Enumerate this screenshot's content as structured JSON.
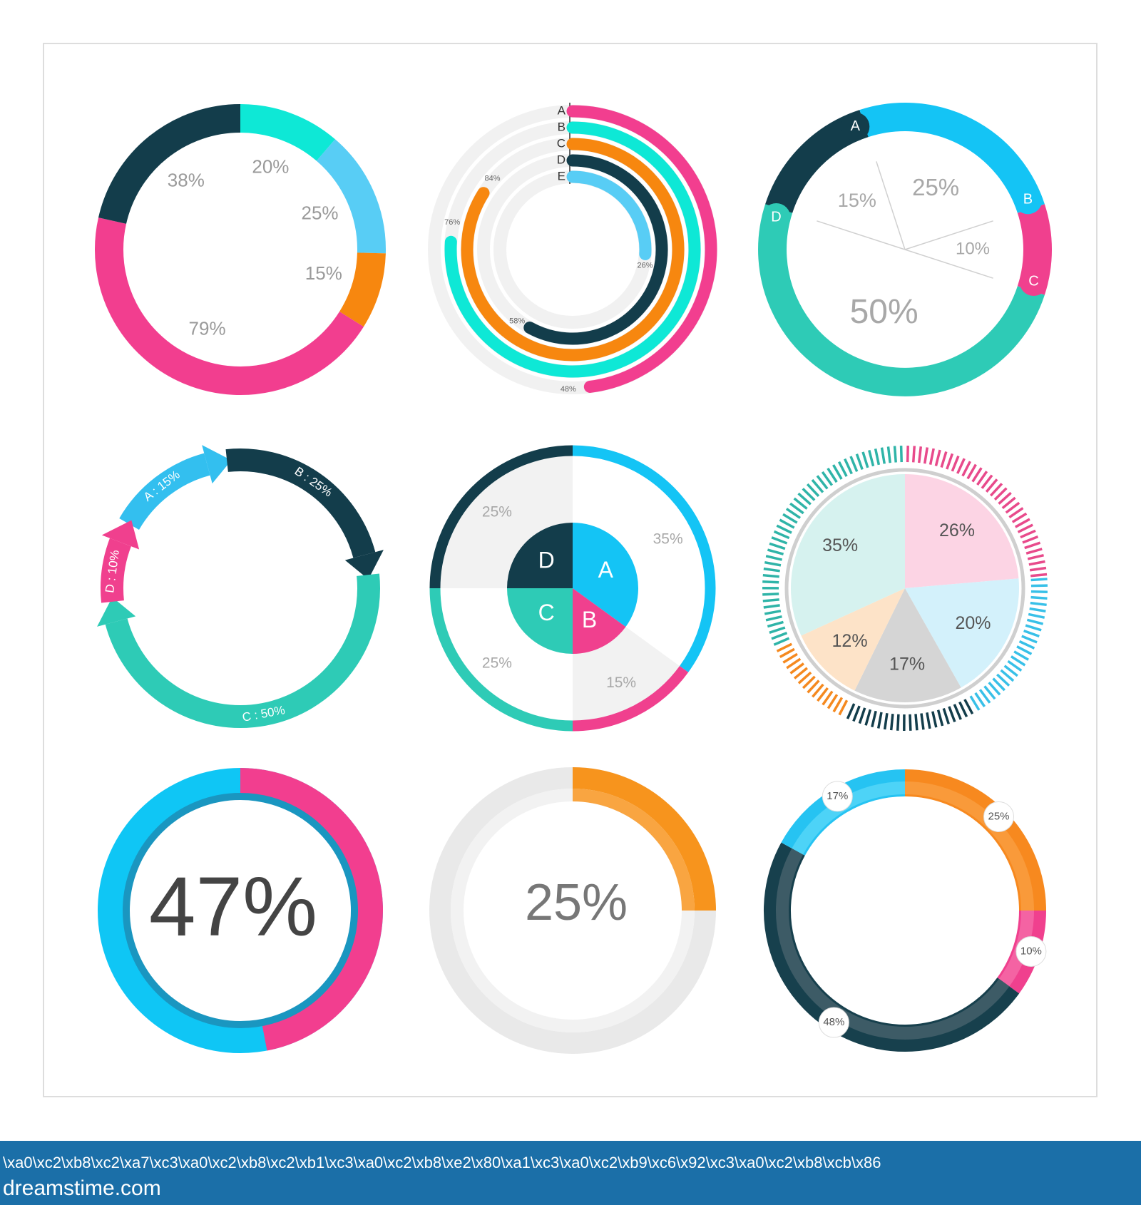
{
  "chart_data": [
    {
      "type": "donut",
      "values": [
        20,
        25,
        15,
        79,
        38
      ],
      "value_labels": [
        "20%",
        "25%",
        "15%",
        "79%",
        "38%"
      ],
      "colors": [
        "#0ee8d6",
        "#58cdf5",
        "#f7870f",
        "#f23e8f",
        "#133d4b"
      ]
    },
    {
      "type": "radial-bar",
      "categories": [
        "A",
        "B",
        "C",
        "D",
        "E"
      ],
      "values": [
        48,
        76,
        84,
        58,
        26
      ],
      "value_labels": [
        "48%",
        "76%",
        "84%",
        "58%",
        "26%"
      ],
      "colors": [
        "#f23e8f",
        "#0ee8d6",
        "#f7870f",
        "#133d4b",
        "#58cdf5"
      ],
      "track_color": "#f1f1f1"
    },
    {
      "type": "donut-callout",
      "categories": [
        "A",
        "B",
        "C",
        "D"
      ],
      "values": [
        15,
        25,
        10,
        50
      ],
      "value_labels": [
        "15%",
        "25%",
        "10%",
        "50%"
      ],
      "colors": [
        "#133d4b",
        "#14c4f5",
        "#f0408e",
        "#2ecbb6"
      ]
    },
    {
      "type": "arrow-cycle",
      "categories": [
        "A",
        "B",
        "C",
        "D"
      ],
      "values": [
        15,
        25,
        50,
        10
      ],
      "value_labels": [
        "A : 15%",
        "B : 25%",
        "C : 50%",
        "D : 10%"
      ],
      "colors": [
        "#33bfef",
        "#133d4b",
        "#2ecbb6",
        "#f0408e"
      ]
    },
    {
      "type": "nested-pie",
      "categories": [
        "A",
        "B",
        "C",
        "D"
      ],
      "values": [
        35,
        15,
        25,
        25
      ],
      "value_labels": [
        "35%",
        "15%",
        "25%",
        "25%"
      ],
      "colors": [
        "#14c4f5",
        "#f0408e",
        "#2ecbb6",
        "#133d4b"
      ]
    },
    {
      "type": "tick-pie",
      "values": [
        26,
        20,
        17,
        12,
        35
      ],
      "value_labels": [
        "26%",
        "20%",
        "17%",
        "12%",
        "35%"
      ],
      "colors": [
        "#fcd4e4",
        "#d3f1fb",
        "#d5d5d5",
        "#fde3c8",
        "#d6f2ef"
      ],
      "tick_colors": [
        "#e84a8b",
        "#38c0e8",
        "#133d4b",
        "#f5891f",
        "#2fb4a8"
      ]
    },
    {
      "type": "progress-ring",
      "values": [
        47
      ],
      "value_labels": [
        "47%"
      ],
      "colors": [
        "#f23e8f",
        "#0fc6f5",
        "#1a96c0"
      ]
    },
    {
      "type": "progress-arc",
      "values": [
        25
      ],
      "value_labels": [
        "25%"
      ],
      "colors": [
        "#f7941d",
        "#f9a541",
        "#e9e9e9",
        "#f2f2f2"
      ]
    },
    {
      "type": "donut-badge",
      "values": [
        25,
        10,
        48,
        17
      ],
      "value_labels": [
        "25%",
        "10%",
        "48%",
        "17%"
      ],
      "colors": [
        "#f7891f",
        "#f0408e",
        "#17404d",
        "#26c3f2"
      ],
      "inner_colors": [
        "#f99a3a",
        "#f463a3",
        "#3d5b66",
        "#4dd3f7"
      ]
    }
  ],
  "footer": {
    "text": "\\xa0\\xc2\\xb8\\xc2\\xa7\\xc3\\xa0\\xc2\\xb8\\xc2\\xb1\\xc3\\xa0\\xc2\\xb8\\xe2\\x80\\xa1\\xc3\\xa0\\xc2\\xb9\\xc6\\x92\\xc3\\xa0\\xc2\\xb8\\xcb\\x86",
    "brand": "dreamstime.com"
  }
}
